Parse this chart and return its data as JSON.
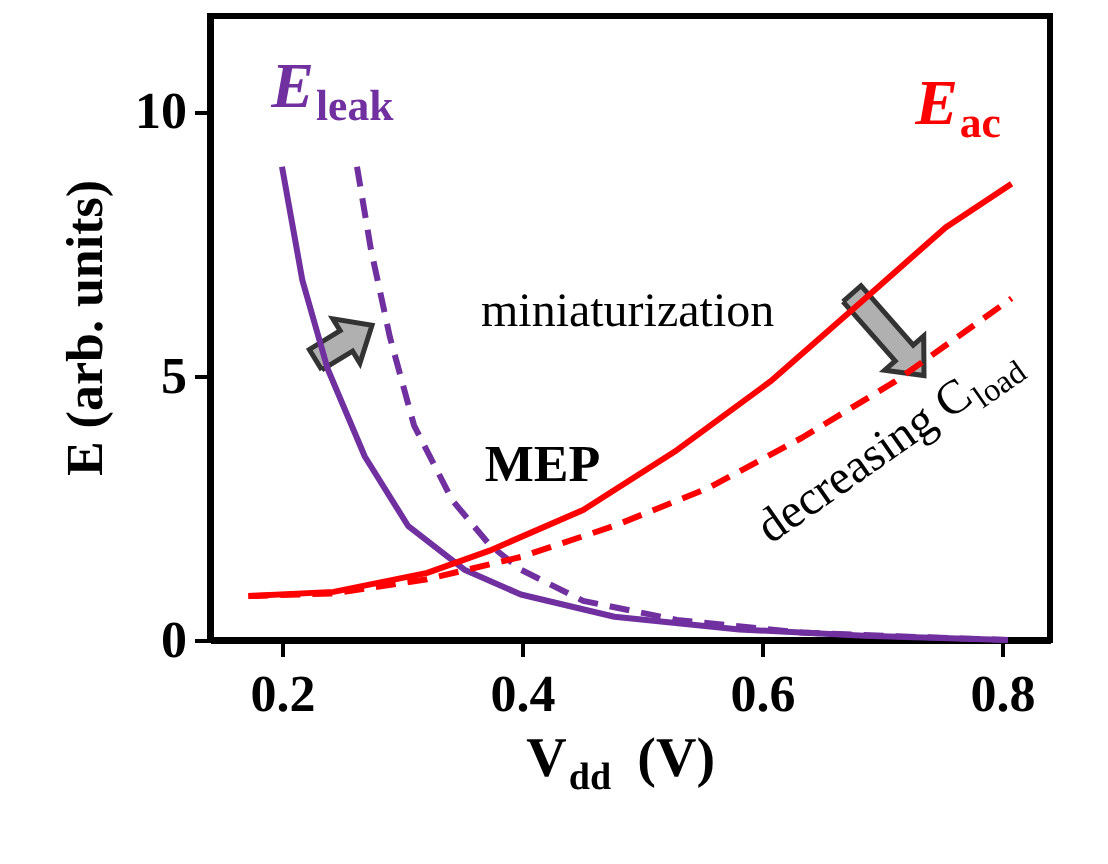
{
  "chart_data": {
    "type": "line",
    "xlabel": "V$_{dd}$ (V)",
    "ylabel": "E (arb. units)",
    "xlim": [
      0.14,
      0.84
    ],
    "xticks": [
      0.2,
      0.4,
      0.6,
      0.8
    ],
    "ylim": [
      0,
      11.8
    ],
    "yticks": [
      0,
      5,
      10
    ],
    "grid": false,
    "series": [
      {
        "name": "E$_{leak}$",
        "color": "#7030a0",
        "line_style": "solid",
        "x": [
          0.2,
          0.217,
          0.238,
          0.269,
          0.305,
          0.352,
          0.399,
          0.477,
          0.581,
          0.685,
          0.805
        ],
        "values": [
          8.95,
          6.8,
          5.13,
          3.47,
          2.16,
          1.33,
          0.86,
          0.44,
          0.2,
          0.08,
          0
        ]
      },
      {
        "color": "#7030a0",
        "line_style": "dashed",
        "x": [
          0.2625,
          0.274,
          0.29,
          0.31,
          0.342,
          0.373,
          0.399,
          0.451,
          0.529,
          0.633,
          0.738,
          0.805
        ],
        "values": [
          8.95,
          7.4,
          5.72,
          4.06,
          2.64,
          1.8,
          1.33,
          0.74,
          0.38,
          0.14,
          0.05,
          0
        ]
      },
      {
        "name": "E$_{ac}$",
        "color": "#ff0000",
        "line_style": "solid",
        "x": [
          0.172,
          0.243,
          0.321,
          0.373,
          0.451,
          0.529,
          0.607,
          0.685,
          0.753,
          0.808
        ],
        "values": [
          0.83,
          0.91,
          1.27,
          1.69,
          2.46,
          3.59,
          4.89,
          6.44,
          7.8,
          8.63
        ]
      },
      {
        "color": "#ff0000",
        "line_style": "dashed",
        "x": [
          0.172,
          0.243,
          0.321,
          0.399,
          0.477,
          0.555,
          0.633,
          0.711,
          0.808
        ],
        "values": [
          0.83,
          0.88,
          1.15,
          1.57,
          2.16,
          2.87,
          3.82,
          4.89,
          6.46
        ]
      }
    ],
    "annotations": [
      "miniaturization",
      "MEP",
      "decreasing C$_{load}$"
    ]
  }
}
